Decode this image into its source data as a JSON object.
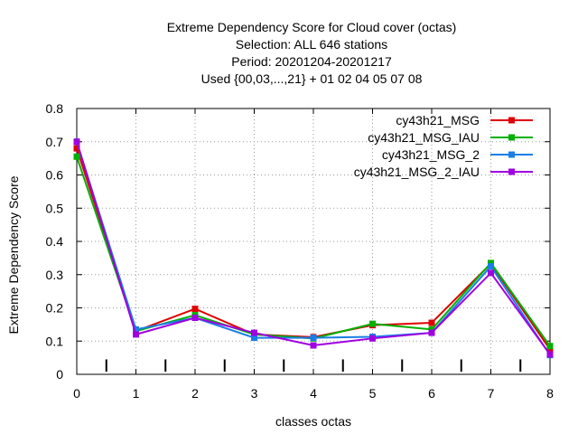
{
  "chart_data": {
    "type": "line",
    "title_lines": [
      "Extreme Dependency Score  for Cloud cover (octas)",
      "Selection: ALL    646 stations",
      "Period: 20201204-20201217",
      "Used {00,03,...,21} + 01 02 04 05 07 08"
    ],
    "xlabel": "classes octas",
    "ylabel": "Extreme Dependency Score",
    "x": [
      0,
      1,
      2,
      3,
      4,
      5,
      6,
      7,
      8
    ],
    "xlim": [
      0,
      8
    ],
    "ylim": [
      0,
      0.8
    ],
    "xticks": [
      0,
      1,
      2,
      3,
      4,
      5,
      6,
      7,
      8
    ],
    "yticks": [
      0,
      0.1,
      0.2,
      0.3,
      0.4,
      0.5,
      0.6,
      0.7,
      0.8
    ],
    "xtick_labels": [
      "0",
      "1",
      "2",
      "3",
      "4",
      "5",
      "6",
      "7",
      "8"
    ],
    "ytick_labels": [
      "0",
      "0.1",
      "0.2",
      "0.3",
      "0.4",
      "0.5",
      "0.6",
      "0.7",
      "0.8"
    ],
    "minor_marks_x": [
      0.5,
      1.5,
      2.5,
      3.5,
      4.5,
      5.5,
      6.5,
      7.5
    ],
    "grid": true,
    "legend_position": "top-right",
    "series": [
      {
        "name": "cy43h21_MSG",
        "color": "#e00000",
        "values": [
          0.68,
          0.13,
          0.197,
          0.12,
          0.112,
          0.148,
          0.155,
          0.333,
          0.075
        ]
      },
      {
        "name": "cy43h21_MSG_IAU",
        "color": "#00b000",
        "values": [
          0.655,
          0.13,
          0.178,
          0.12,
          0.108,
          0.152,
          0.135,
          0.335,
          0.085
        ]
      },
      {
        "name": "cy43h21_MSG_2",
        "color": "#1a7ee6",
        "values": [
          0.7,
          0.135,
          0.17,
          0.11,
          0.11,
          0.113,
          0.125,
          0.325,
          0.058
        ]
      },
      {
        "name": "cy43h21_MSG_2_IAU",
        "color": "#a000e0",
        "values": [
          0.7,
          0.12,
          0.17,
          0.125,
          0.087,
          0.108,
          0.125,
          0.305,
          0.06
        ]
      }
    ]
  }
}
